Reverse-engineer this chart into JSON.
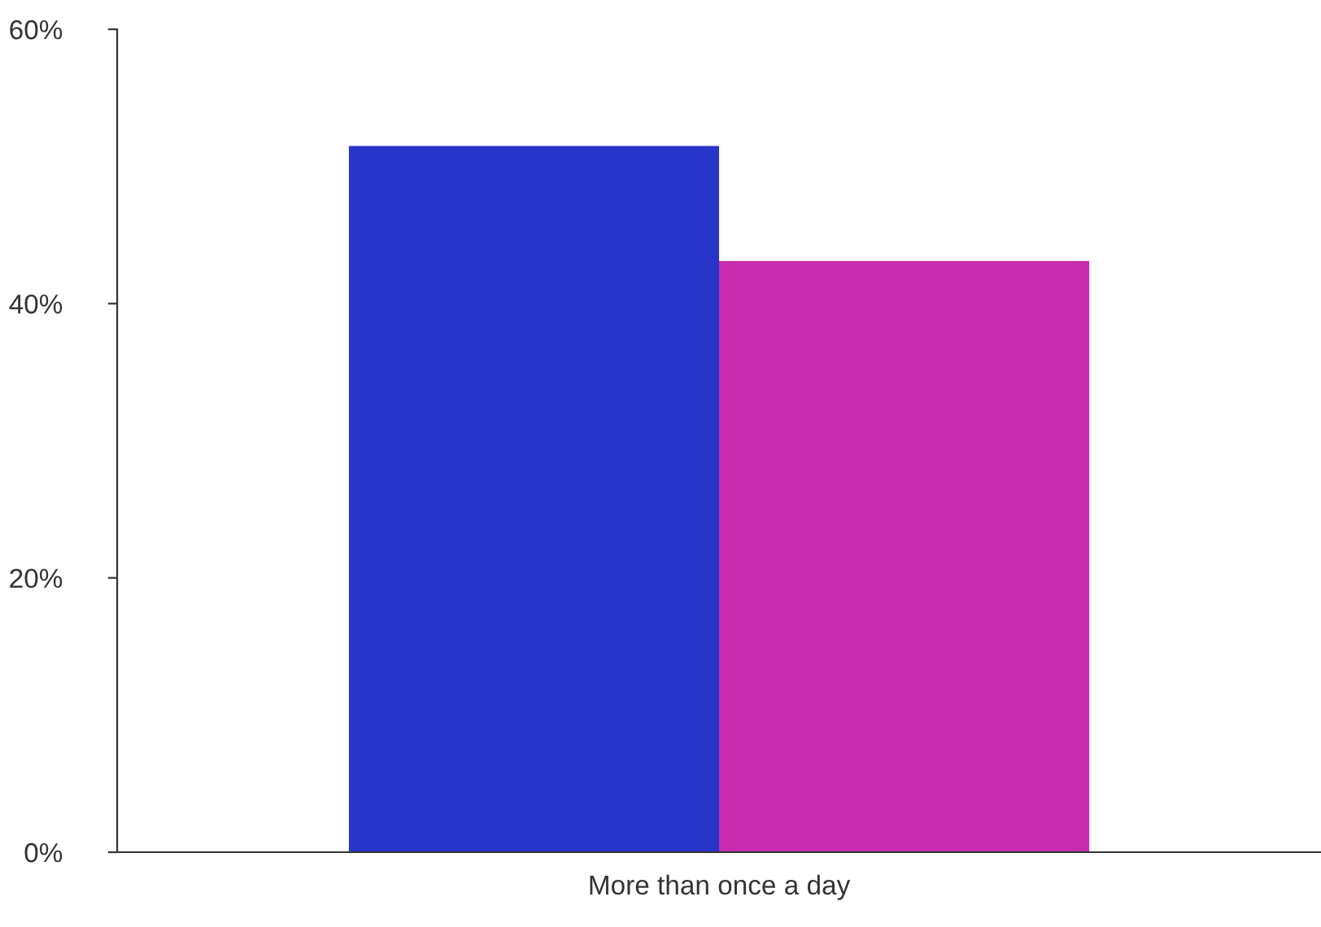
{
  "chart_data": {
    "type": "bar",
    "categories": [
      "More than once a day"
    ],
    "series": [
      {
        "color": "#2934c8",
        "values": [
          51.5
        ]
      },
      {
        "color": "#c92bb0",
        "values": [
          43.1
        ]
      }
    ],
    "ylim": [
      0,
      60
    ],
    "yticks": [
      {
        "value": 0,
        "label": "0%"
      },
      {
        "value": 20,
        "label": "20%"
      },
      {
        "value": 40,
        "label": "40%"
      },
      {
        "value": 60,
        "label": "60%"
      }
    ]
  }
}
